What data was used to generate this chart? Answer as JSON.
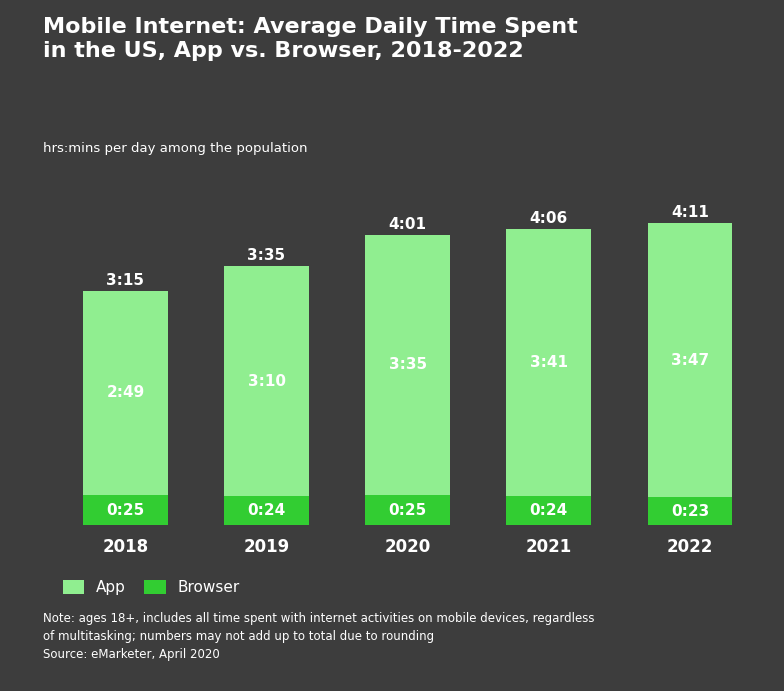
{
  "title": "Mobile Internet: Average Daily Time Spent\nin the US, App vs. Browser, 2018-2022",
  "subtitle": "hrs:mins per day among the population",
  "years": [
    "2018",
    "2019",
    "2020",
    "2021",
    "2022"
  ],
  "app_values": [
    2.8167,
    3.1667,
    3.5833,
    3.6833,
    3.7833
  ],
  "browser_values": [
    0.4167,
    0.4,
    0.4167,
    0.4,
    0.3833
  ],
  "app_labels": [
    "2:49",
    "3:10",
    "3:35",
    "3:41",
    "3:47"
  ],
  "browser_labels": [
    "0:25",
    "0:24",
    "0:25",
    "0:24",
    "0:23"
  ],
  "total_labels": [
    "3:15",
    "3:35",
    "4:01",
    "4:06",
    "4:11"
  ],
  "app_color": "#90EE90",
  "browser_color": "#32CD32",
  "background_color": "#3d3d3d",
  "text_color": "#ffffff",
  "note_text": "Note: ages 18+, includes all time spent with internet activities on mobile devices, regardless\nof multitasking; numbers may not add up to total due to rounding\nSource: eMarketer, April 2020",
  "bar_width": 0.6
}
